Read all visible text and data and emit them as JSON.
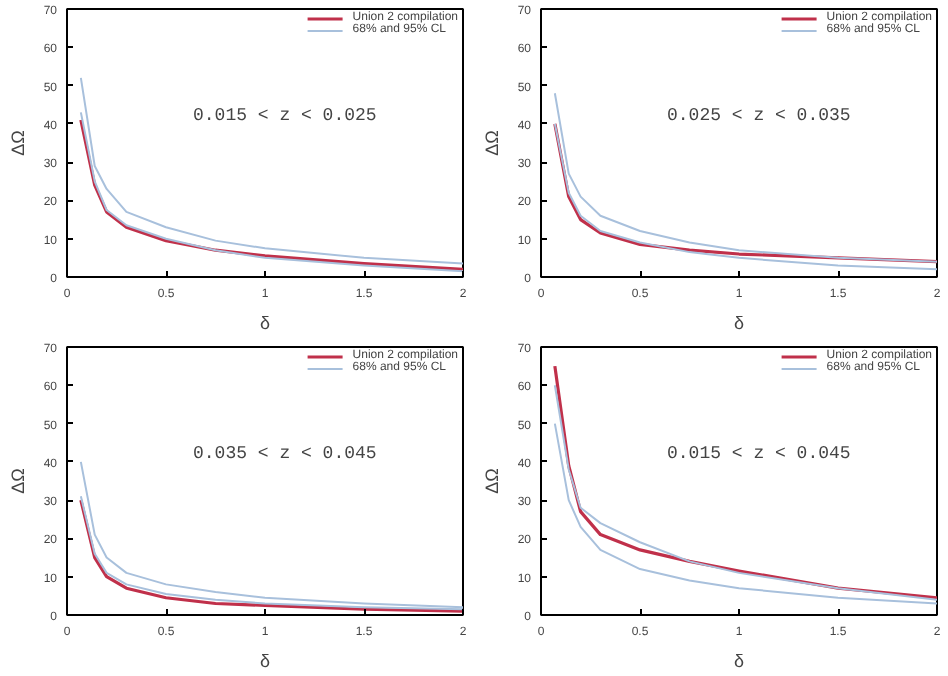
{
  "chart_data": [
    {
      "type": "line",
      "xlabel": "δ",
      "ylabel": "ΔΩ",
      "annotations": [
        "0.015 < z < 0.025"
      ],
      "x": [
        0.07,
        0.14,
        0.2,
        0.3,
        0.5,
        0.75,
        1,
        1.5,
        2
      ],
      "xlim": [
        0,
        2
      ],
      "ylim": [
        0,
        70
      ],
      "xticks": [
        0,
        0.5,
        1,
        1.5,
        2
      ],
      "yticks": [
        0,
        10,
        20,
        30,
        40,
        50,
        60,
        70
      ],
      "legend": "top right",
      "grid": false,
      "series": [
        {
          "name": "Union 2 compilation",
          "color": "#c0304a",
          "values": [
            41,
            24,
            17,
            13,
            9.5,
            7,
            5.5,
            3.5,
            2
          ]
        },
        {
          "name": "68% and 95% CL",
          "color": "#a8c0dc",
          "values": [
            52,
            29,
            23,
            17,
            13,
            9.5,
            7.5,
            5,
            3.5
          ]
        },
        {
          "color": "#a8c0dc",
          "values": [
            43,
            25,
            17.5,
            13.5,
            10,
            7,
            5,
            3,
            1.5
          ]
        }
      ]
    },
    {
      "type": "line",
      "xlabel": "δ",
      "ylabel": "ΔΩ",
      "annotations": [
        "0.025 < z < 0.035"
      ],
      "x": [
        0.07,
        0.14,
        0.2,
        0.3,
        0.5,
        0.75,
        1,
        1.5,
        2
      ],
      "xlim": [
        0,
        2
      ],
      "ylim": [
        0,
        70
      ],
      "xticks": [
        0,
        0.5,
        1,
        1.5,
        2
      ],
      "yticks": [
        0,
        10,
        20,
        30,
        40,
        50,
        60,
        70
      ],
      "legend": "top right",
      "grid": false,
      "series": [
        {
          "name": "Union 2 compilation",
          "color": "#c0304a",
          "values": [
            40,
            21,
            15,
            11.5,
            8.5,
            7,
            6,
            5,
            4
          ]
        },
        {
          "name": "68% and 95% CL",
          "color": "#a8c0dc",
          "values": [
            48,
            27,
            21,
            16,
            12,
            9,
            7,
            5,
            4
          ]
        },
        {
          "color": "#a8c0dc",
          "values": [
            40,
            22,
            16,
            12,
            9,
            6.5,
            5,
            3,
            2
          ]
        }
      ]
    },
    {
      "type": "line",
      "xlabel": "δ",
      "ylabel": "ΔΩ",
      "annotations": [
        "0.035 < z < 0.045"
      ],
      "x": [
        0.07,
        0.14,
        0.2,
        0.3,
        0.5,
        0.75,
        1,
        1.5,
        2
      ],
      "xlim": [
        0,
        2
      ],
      "ylim": [
        0,
        70
      ],
      "xticks": [
        0,
        0.5,
        1,
        1.5,
        2
      ],
      "yticks": [
        0,
        10,
        20,
        30,
        40,
        50,
        60,
        70
      ],
      "legend": "top right",
      "grid": false,
      "series": [
        {
          "name": "Union 2 compilation",
          "color": "#c0304a",
          "values": [
            30,
            15,
            10,
            7,
            4.5,
            3,
            2.5,
            1.5,
            1
          ]
        },
        {
          "name": "68% and 95% CL",
          "color": "#a8c0dc",
          "values": [
            40,
            21,
            15,
            11,
            8,
            6,
            4.5,
            3,
            2
          ]
        },
        {
          "color": "#a8c0dc",
          "values": [
            31,
            16,
            11,
            8,
            5.5,
            4,
            3,
            2,
            1.5
          ]
        }
      ]
    },
    {
      "type": "line",
      "xlabel": "δ",
      "ylabel": "ΔΩ",
      "annotations": [
        "0.015 < z < 0.045"
      ],
      "x": [
        0.07,
        0.14,
        0.2,
        0.3,
        0.5,
        0.75,
        1,
        1.5,
        2
      ],
      "xlim": [
        0,
        2
      ],
      "ylim": [
        0,
        70
      ],
      "xticks": [
        0,
        0.5,
        1,
        1.5,
        2
      ],
      "yticks": [
        0,
        10,
        20,
        30,
        40,
        50,
        60,
        70
      ],
      "legend": "top right",
      "grid": false,
      "series": [
        {
          "name": "Union 2 compilation",
          "color": "#c0304a",
          "values": [
            65,
            39,
            27,
            21,
            17,
            14,
            11.5,
            7,
            4.5
          ]
        },
        {
          "name": "68% and 95% CL",
          "color": "#a8c0dc",
          "values": [
            60,
            38,
            28,
            24,
            19,
            14,
            11,
            7,
            4
          ]
        },
        {
          "color": "#a8c0dc",
          "values": [
            50,
            30,
            23,
            17,
            12,
            9,
            7,
            4.5,
            3
          ]
        }
      ]
    }
  ]
}
